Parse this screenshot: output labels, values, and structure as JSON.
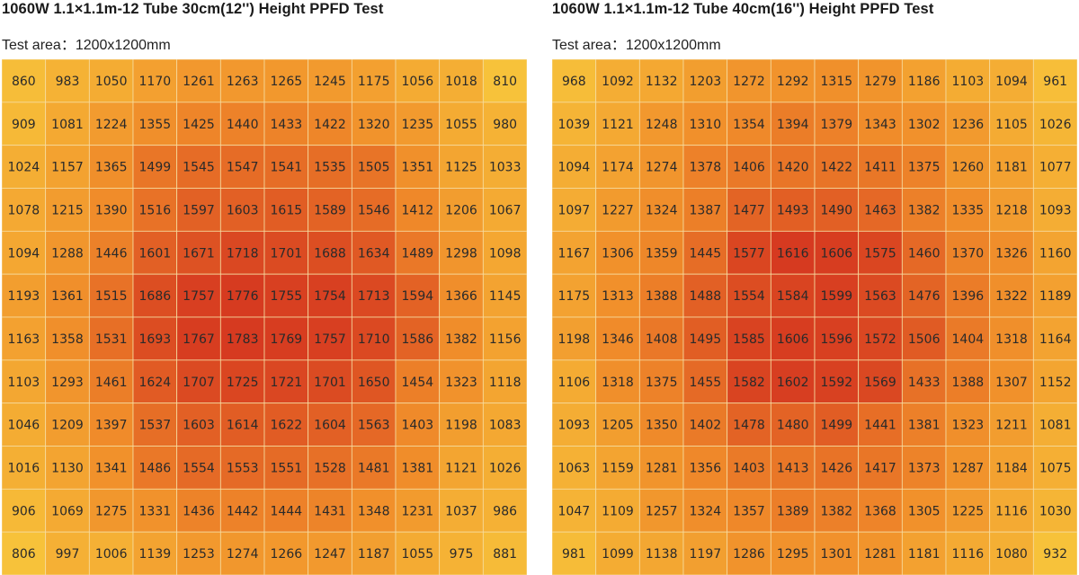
{
  "colors": {
    "low": "#F7C23A",
    "mid": "#F08C2A",
    "high": "#D63A20"
  },
  "chart_data": [
    {
      "type": "heatmap",
      "title": "1060W  1.1×1.1m-12 Tube 30cm(12'') Height PPFD Test",
      "subtitle": "Test area：1200x1200mm",
      "rows": 12,
      "cols": 12,
      "values": [
        [
          860,
          983,
          1050,
          1170,
          1261,
          1263,
          1265,
          1245,
          1175,
          1056,
          1018,
          810
        ],
        [
          909,
          1081,
          1224,
          1355,
          1425,
          1440,
          1433,
          1422,
          1320,
          1235,
          1055,
          980
        ],
        [
          1024,
          1157,
          1365,
          1499,
          1545,
          1547,
          1541,
          1535,
          1505,
          1351,
          1125,
          1033
        ],
        [
          1078,
          1215,
          1390,
          1516,
          1597,
          1603,
          1615,
          1589,
          1546,
          1412,
          1206,
          1067
        ],
        [
          1094,
          1288,
          1446,
          1601,
          1671,
          1718,
          1701,
          1688,
          1634,
          1489,
          1298,
          1098
        ],
        [
          1193,
          1361,
          1515,
          1686,
          1757,
          1776,
          1755,
          1754,
          1713,
          1594,
          1366,
          1145
        ],
        [
          1163,
          1358,
          1531,
          1693,
          1767,
          1783,
          1769,
          1757,
          1710,
          1586,
          1382,
          1156
        ],
        [
          1103,
          1293,
          1461,
          1624,
          1707,
          1725,
          1721,
          1701,
          1650,
          1454,
          1323,
          1118
        ],
        [
          1046,
          1209,
          1397,
          1537,
          1603,
          1614,
          1622,
          1604,
          1563,
          1403,
          1198,
          1083
        ],
        [
          1016,
          1130,
          1341,
          1486,
          1554,
          1553,
          1551,
          1528,
          1481,
          1381,
          1121,
          1026
        ],
        [
          906,
          1069,
          1275,
          1331,
          1436,
          1442,
          1444,
          1431,
          1348,
          1231,
          1037,
          986
        ],
        [
          806,
          997,
          1006,
          1139,
          1253,
          1274,
          1266,
          1247,
          1187,
          1055,
          975,
          881
        ]
      ]
    },
    {
      "type": "heatmap",
      "title": "1060W  1.1×1.1m-12 Tube 40cm(16'') Height PPFD Test",
      "subtitle": "Test area：1200x1200mm",
      "rows": 12,
      "cols": 12,
      "values": [
        [
          968,
          1092,
          1132,
          1203,
          1272,
          1292,
          1315,
          1279,
          1186,
          1103,
          1094,
          961
        ],
        [
          1039,
          1121,
          1248,
          1310,
          1354,
          1394,
          1379,
          1343,
          1302,
          1236,
          1105,
          1026
        ],
        [
          1094,
          1174,
          1274,
          1378,
          1406,
          1420,
          1422,
          1411,
          1375,
          1260,
          1181,
          1077
        ],
        [
          1097,
          1227,
          1324,
          1387,
          1477,
          1493,
          1490,
          1463,
          1382,
          1335,
          1218,
          1093
        ],
        [
          1167,
          1306,
          1359,
          1445,
          1577,
          1616,
          1606,
          1575,
          1460,
          1370,
          1326,
          1160
        ],
        [
          1175,
          1313,
          1388,
          1488,
          1554,
          1584,
          1599,
          1563,
          1476,
          1396,
          1322,
          1189
        ],
        [
          1198,
          1346,
          1408,
          1495,
          1585,
          1606,
          1596,
          1572,
          1506,
          1404,
          1318,
          1164
        ],
        [
          1106,
          1318,
          1375,
          1455,
          1582,
          1602,
          1592,
          1569,
          1433,
          1388,
          1307,
          1152
        ],
        [
          1093,
          1205,
          1350,
          1402,
          1478,
          1480,
          1499,
          1441,
          1381,
          1323,
          1211,
          1081
        ],
        [
          1063,
          1159,
          1281,
          1356,
          1403,
          1413,
          1426,
          1417,
          1373,
          1287,
          1184,
          1075
        ],
        [
          1047,
          1109,
          1257,
          1324,
          1357,
          1389,
          1382,
          1368,
          1305,
          1225,
          1116,
          1030
        ],
        [
          981,
          1099,
          1138,
          1197,
          1286,
          1295,
          1301,
          1281,
          1181,
          1116,
          1080,
          932
        ]
      ]
    }
  ]
}
